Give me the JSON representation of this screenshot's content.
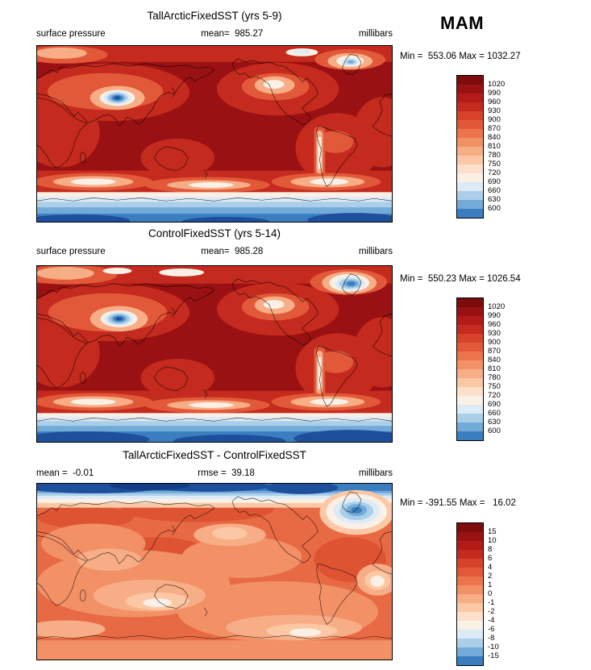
{
  "season_label": "MAM",
  "colorbar_palette": [
    "#7d0c0d",
    "#9a1113",
    "#b21b17",
    "#c42a1d",
    "#d6422a",
    "#e25939",
    "#ec744d",
    "#f29066",
    "#f7ad85",
    "#fbc7a4",
    "#fde0cb",
    "#faf0e6",
    "#ddebf6",
    "#accfe9",
    "#73abd8",
    "#3b7ec0"
  ],
  "panels": [
    {
      "title": "TallArcticFixedSST (yrs 5-9)",
      "header_left": "surface pressure",
      "header_center": "mean=  985.27",
      "header_right": "millibars",
      "minmax": "Min =  553.06 Max = 1032.27",
      "colorbar_labels": [
        "1020",
        "990",
        "960",
        "930",
        "900",
        "870",
        "840",
        "810",
        "780",
        "750",
        "720",
        "690",
        "660",
        "630",
        "600"
      ]
    },
    {
      "title": "ControlFixedSST (yrs 5-14)",
      "header_left": "surface pressure",
      "header_center": "mean=  985.28",
      "header_right": "millibars",
      "minmax": "Min =  550.23 Max = 1026.54",
      "colorbar_labels": [
        "1020",
        "990",
        "960",
        "930",
        "900",
        "870",
        "840",
        "810",
        "780",
        "750",
        "720",
        "690",
        "660",
        "630",
        "600"
      ]
    },
    {
      "title": "TallArcticFixedSST - ControlFixedSST",
      "header_left": "mean =  -0.01",
      "header_center": "rmse =  39.18",
      "header_right": "millibars",
      "minmax": "Min = -391.55 Max =   16.02",
      "colorbar_labels": [
        "15",
        "10",
        "8",
        "6",
        "4",
        "2",
        "1",
        "0",
        "-1",
        "-2",
        "-4",
        "-6",
        "-8",
        "-10",
        "-15"
      ]
    }
  ],
  "chart_data": [
    {
      "type": "heatmap",
      "subtype": "filled-contour global lat-lon map",
      "title": "TallArcticFixedSST (yrs 5-9)",
      "variable": "surface pressure",
      "units": "millibars",
      "season": "MAM",
      "mean": 985.27,
      "min": 553.06,
      "max": 1032.27,
      "contour_levels": [
        1020,
        990,
        960,
        930,
        900,
        870,
        840,
        810,
        780,
        750,
        720,
        690,
        660,
        630,
        600
      ],
      "palette": "red = high pressure (>1020), white mid, blue = low pressure (<600)",
      "notable_features": [
        "deep blue low over Tibetan Plateau",
        "small low over Greenland",
        "blue band over Antarctica",
        "dark red (>1020) over most oceans"
      ]
    },
    {
      "type": "heatmap",
      "subtype": "filled-contour global lat-lon map",
      "title": "ControlFixedSST (yrs 5-14)",
      "variable": "surface pressure",
      "units": "millibars",
      "season": "MAM",
      "mean": 985.28,
      "min": 550.23,
      "max": 1026.54,
      "contour_levels": [
        1020,
        990,
        960,
        930,
        900,
        870,
        840,
        810,
        780,
        750,
        720,
        690,
        660,
        630,
        600
      ],
      "palette": "red = high pressure (>1020), white mid, blue = low pressure (<600)",
      "notable_features": [
        "deep blue low over Tibetan Plateau",
        "pronounced blue low over Greenland",
        "blue band over Antarctica"
      ]
    },
    {
      "type": "heatmap",
      "subtype": "filled-contour global lat-lon difference map",
      "title": "TallArcticFixedSST - ControlFixedSST",
      "variable": "surface pressure difference",
      "units": "millibars",
      "season": "MAM",
      "mean": -0.01,
      "rmse": 39.18,
      "min": -391.55,
      "max": 16.02,
      "contour_levels": [
        15,
        10,
        8,
        6,
        4,
        2,
        1,
        0,
        -1,
        -2,
        -4,
        -6,
        -8,
        -10,
        -15
      ],
      "palette": "red = positive difference, blue = negative difference",
      "notable_features": [
        "strong negative (dark blue) band along Arctic top edge",
        "negative blue anomaly near Greenland",
        "weak positive (orange) differences elsewhere"
      ]
    }
  ]
}
